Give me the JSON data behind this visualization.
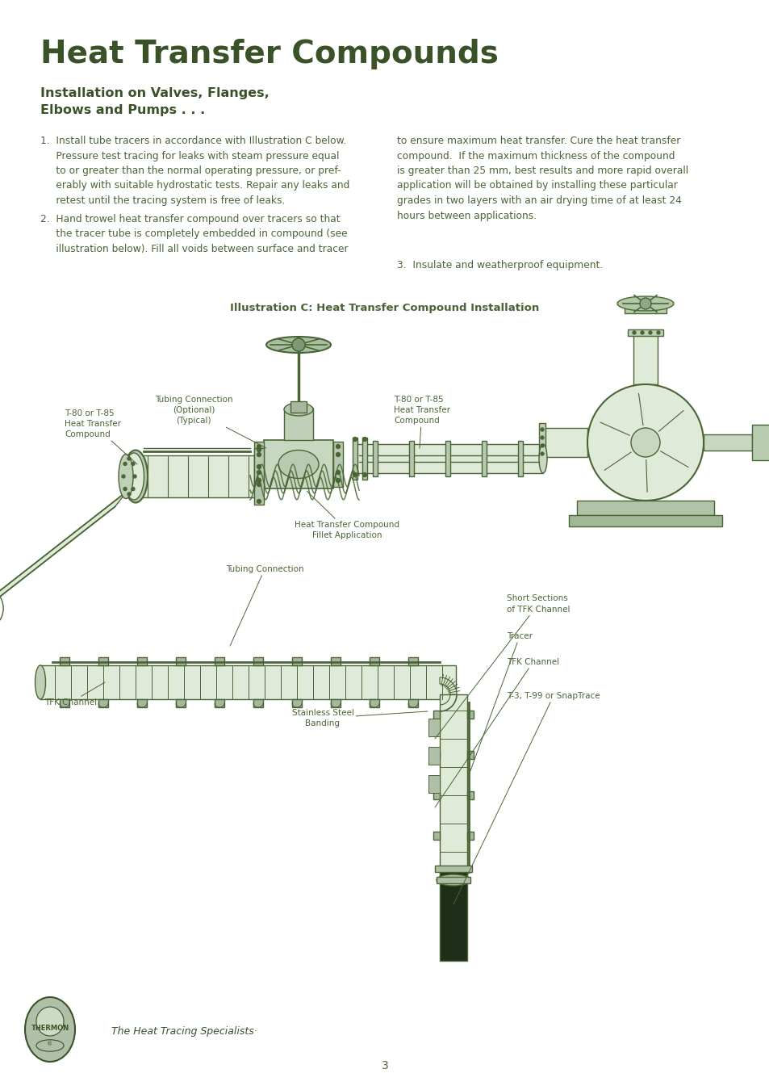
{
  "bg_color": "#ffffff",
  "title": "Heat Transfer Compounds",
  "title_color": "#3a5228",
  "title_fontsize": 28,
  "subtitle": "Installation on Valves, Flanges,\nElbows and Pumps . . .",
  "subtitle_color": "#3a5228",
  "subtitle_fontsize": 11.5,
  "text_color": "#4a6535",
  "body_fontsize": 8.8,
  "ill_title": "Illustration C: Heat Transfer Compound Installation",
  "ill_title_fontsize": 9.5,
  "page_number": "3",
  "footer_text": "The Heat Tracing Specialists·",
  "pipe_color": "#4a6535",
  "pipe_fill": "#e0ead8",
  "pipe_dark": "#1e2e18",
  "ann_color": "#4a6535",
  "ann_fontsize": 7.5,
  "col1_para1": "1.  Install tube tracers in accordance with Illustration C below.\n     Pressure test tracing for leaks with steam pressure equal\n     to or greater than the normal operating pressure, or pref-\n     erably with suitable hydrostatic tests. Repair any leaks and\n     retest until the tracing system is free of leaks.",
  "col1_para2": "2.  Hand trowel heat transfer compound over tracers so that\n     the tracer tube is completely embedded in compound (see\n     illustration below). Fill all voids between surface and tracer",
  "col2_para1": "to ensure maximum heat transfer. Cure the heat transfer\ncompound.  If the maximum thickness of the compound\nis greater than 25 mm, best results and more rapid overall\napplication will be obtained by installing these particular\ngrades in two layers with an air drying time of at least 24\nhours between applications.",
  "col2_para2": "3.  Insulate and weatherproof equipment."
}
